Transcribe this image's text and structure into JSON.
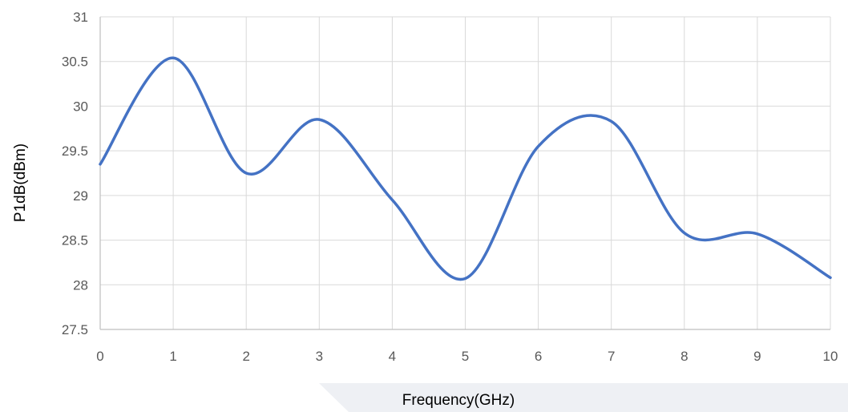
{
  "chart_data": {
    "type": "line",
    "xlabel": "Frequency(GHz)",
    "ylabel": "P1dB(dBm)",
    "xlim": [
      0,
      10
    ],
    "ylim": [
      27.5,
      31
    ],
    "xticks": [
      0,
      1,
      2,
      3,
      4,
      5,
      6,
      7,
      8,
      9,
      10
    ],
    "yticks": [
      27.5,
      28,
      28.5,
      29,
      29.5,
      30,
      30.5,
      31
    ],
    "grid": true,
    "smooth": true,
    "series": [
      {
        "color": "#4472c4",
        "x": [
          0,
          1,
          2,
          3,
          4,
          5,
          6,
          7,
          8,
          9,
          10
        ],
        "y": [
          29.35,
          30.54,
          29.25,
          29.85,
          28.95,
          28.07,
          29.55,
          29.83,
          28.58,
          28.57,
          28.08
        ]
      }
    ]
  }
}
